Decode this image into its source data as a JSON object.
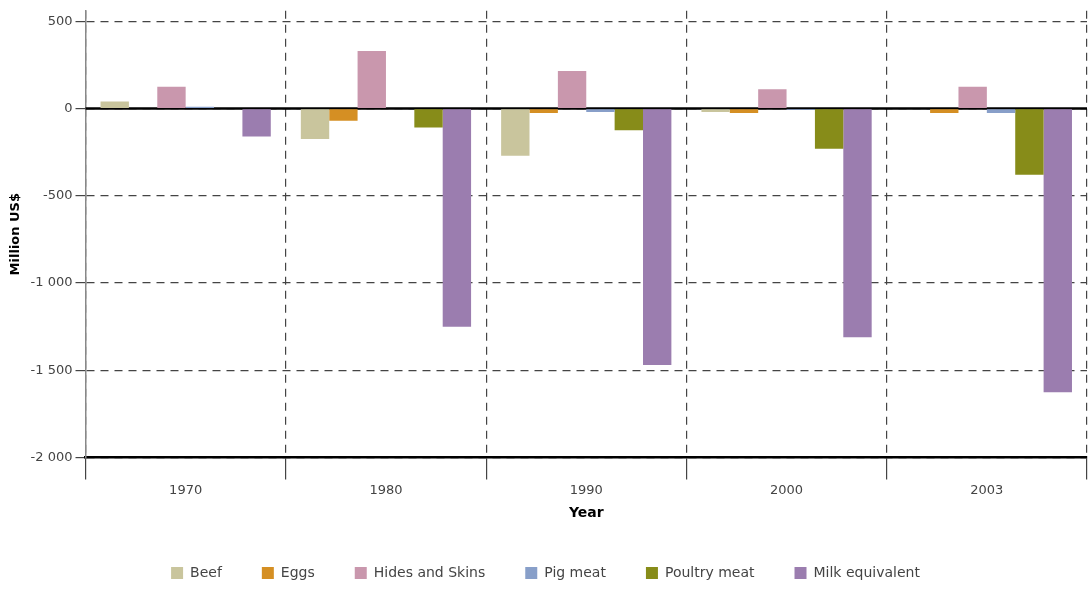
{
  "chart_data": {
    "type": "bar",
    "xlabel": "Year",
    "ylabel": "Million US$",
    "categories": [
      "1970",
      "1980",
      "1990",
      "2000",
      "2003"
    ],
    "series": [
      {
        "name": "Beef",
        "color": "#c9c59d",
        "values": [
          40,
          -175,
          -270,
          -20,
          0
        ]
      },
      {
        "name": "Eggs",
        "color": "#d58f23",
        "values": [
          0,
          -70,
          -25,
          -25,
          -25
        ]
      },
      {
        "name": "Hides and Skins",
        "color": "#c997ad",
        "values": [
          125,
          330,
          215,
          110,
          125
        ]
      },
      {
        "name": "Pig meat",
        "color": "#889fc9",
        "values": [
          10,
          0,
          -20,
          -8,
          -25
        ]
      },
      {
        "name": "Poultry meat",
        "color": "#878c19",
        "values": [
          0,
          -108,
          -125,
          -230,
          -380
        ]
      },
      {
        "name": "Milk equivalent",
        "color": "#9b7daf",
        "values": [
          -160,
          -1250,
          -1470,
          -1310,
          -1625
        ]
      }
    ],
    "ylim": [
      -2000,
      560
    ],
    "yticks": [
      500,
      0,
      -500,
      {
        "value": -1000,
        "label": "-1 000"
      },
      {
        "value": -1500,
        "label": "-1 500"
      },
      {
        "value": -2000,
        "label": "-2 000"
      }
    ],
    "grid": true,
    "legend": "bottom"
  }
}
